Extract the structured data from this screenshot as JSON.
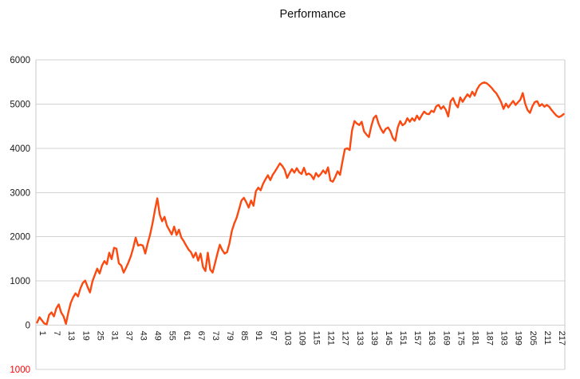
{
  "title": "Performance",
  "colors": {
    "line": "#FB4A11",
    "grid": "#D3D3D3",
    "frame": "#C9C9C9",
    "axis_text": "#1A1A1A",
    "negative_tick_text": "#FF0000",
    "background": "#FFFFFF"
  },
  "chart_data": {
    "type": "line",
    "title": "Performance",
    "series_name": "Performance",
    "legend": "none",
    "grid": "horizontal",
    "xlabel": "",
    "ylabel": "",
    "ylim": [
      -1000,
      6000
    ],
    "y_gridline_step": 1000,
    "y_ticks": [
      {
        "label": "6000",
        "value": 6000,
        "color": "#1A1A1A"
      },
      {
        "label": "5000",
        "value": 5000,
        "color": "#1A1A1A"
      },
      {
        "label": "4000",
        "value": 4000,
        "color": "#1A1A1A"
      },
      {
        "label": "3000",
        "value": 3000,
        "color": "#1A1A1A"
      },
      {
        "label": "2000",
        "value": 2000,
        "color": "#1A1A1A"
      },
      {
        "label": "1000",
        "value": 1000,
        "color": "#1A1A1A"
      },
      {
        "label": "0",
        "value": 0,
        "color": "#1A1A1A"
      },
      {
        "label": "1000",
        "value": -1000,
        "color": "#FF0000"
      }
    ],
    "x_first": 1,
    "x_count": 220,
    "x_tick_interval": 6,
    "x_tick_labels": [
      "1",
      "7",
      "13",
      "19",
      "25",
      "31",
      "37",
      "43",
      "49",
      "55",
      "61",
      "67",
      "73",
      "79",
      "85",
      "91",
      "97",
      "103",
      "109",
      "115",
      "121",
      "127",
      "133",
      "139",
      "145",
      "151",
      "157",
      "163",
      "169",
      "175",
      "181",
      "187",
      "193",
      "199",
      "205",
      "211",
      "217"
    ],
    "values": [
      60,
      180,
      110,
      40,
      20,
      235,
      290,
      200,
      380,
      470,
      290,
      200,
      30,
      290,
      505,
      630,
      720,
      650,
      830,
      955,
      1010,
      865,
      740,
      990,
      1135,
      1280,
      1170,
      1350,
      1450,
      1380,
      1640,
      1495,
      1750,
      1730,
      1400,
      1350,
      1190,
      1300,
      1420,
      1560,
      1750,
      1980,
      1800,
      1820,
      1800,
      1620,
      1850,
      2050,
      2300,
      2600,
      2870,
      2500,
      2350,
      2450,
      2250,
      2150,
      2050,
      2230,
      2040,
      2160,
      1980,
      1900,
      1800,
      1710,
      1650,
      1530,
      1640,
      1460,
      1620,
      1315,
      1225,
      1640,
      1260,
      1190,
      1400,
      1620,
      1820,
      1700,
      1620,
      1650,
      1850,
      2130,
      2300,
      2430,
      2620,
      2820,
      2880,
      2780,
      2660,
      2820,
      2700,
      3030,
      3110,
      3050,
      3200,
      3300,
      3390,
      3280,
      3400,
      3480,
      3570,
      3660,
      3600,
      3510,
      3330,
      3440,
      3530,
      3450,
      3550,
      3460,
      3420,
      3560,
      3400,
      3430,
      3390,
      3300,
      3440,
      3360,
      3420,
      3500,
      3430,
      3570,
      3270,
      3245,
      3350,
      3480,
      3400,
      3700,
      3980,
      4000,
      3960,
      4410,
      4615,
      4560,
      4525,
      4600,
      4380,
      4310,
      4255,
      4500,
      4685,
      4740,
      4560,
      4440,
      4350,
      4440,
      4470,
      4380,
      4230,
      4170,
      4470,
      4615,
      4520,
      4560,
      4680,
      4600,
      4680,
      4620,
      4740,
      4650,
      4750,
      4830,
      4780,
      4770,
      4850,
      4820,
      4950,
      4980,
      4890,
      4950,
      4870,
      4720,
      5065,
      5135,
      5000,
      4925,
      5150,
      5050,
      5140,
      5220,
      5160,
      5280,
      5190,
      5335,
      5425,
      5470,
      5490,
      5470,
      5425,
      5370,
      5300,
      5245,
      5150,
      5045,
      4890,
      5010,
      4925,
      5000,
      5070,
      4980,
      5040,
      5100,
      5250,
      5010,
      4865,
      4800,
      4950,
      5045,
      5065,
      4955,
      5000,
      4940,
      4980,
      4940,
      4865,
      4800,
      4740,
      4705,
      4730,
      4775
    ]
  }
}
